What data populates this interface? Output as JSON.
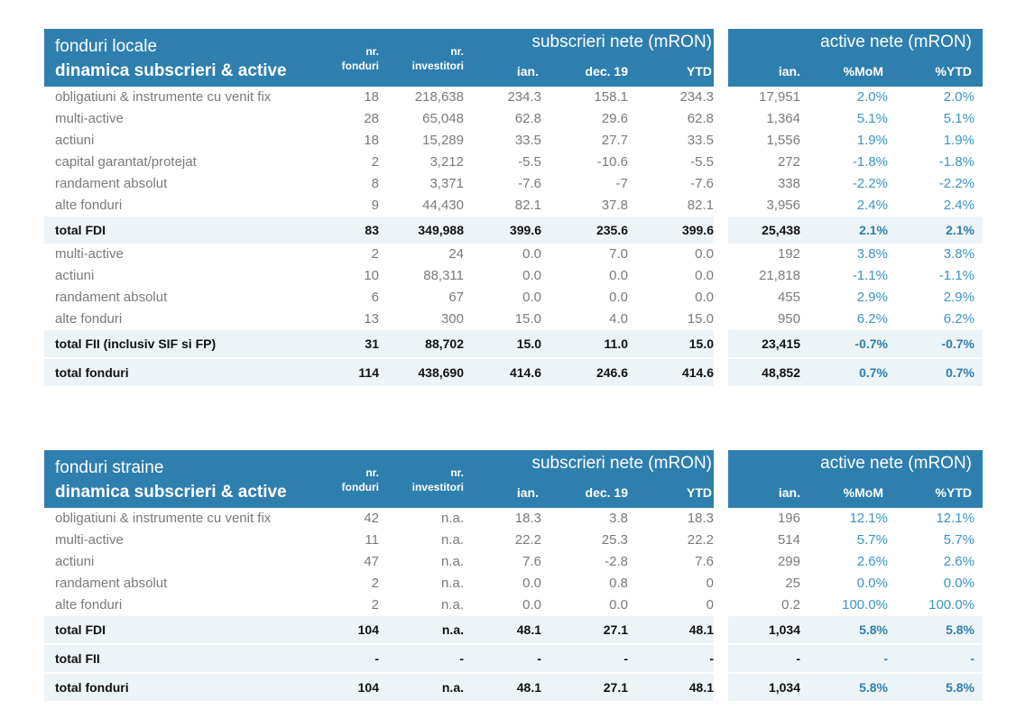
{
  "local": {
    "title": "fonduri locale",
    "subtitle": "dinamica subscrieri & active",
    "hdr_nr_fonduri": [
      "nr.",
      "fonduri"
    ],
    "hdr_nr_investitori": [
      "nr.",
      "investitori"
    ],
    "group_subscrieri": "subscrieri nete (mRON)",
    "group_active": "active nete (mRON)",
    "cols": [
      "ian.",
      "dec. 19",
      "YTD",
      "ian.",
      "%MoM",
      "%YTD"
    ],
    "rows": [
      {
        "label": "obligatiuni & instrumente cu venit fix",
        "nf": "18",
        "ni": "218,638",
        "s1": "234.3",
        "s2": "158.1",
        "s3": "234.3",
        "a1": "17,951",
        "a2": "2.0%",
        "a3": "2.0%",
        "total": false
      },
      {
        "label": "multi-active",
        "nf": "28",
        "ni": "65,048",
        "s1": "62.8",
        "s2": "29.6",
        "s3": "62.8",
        "a1": "1,364",
        "a2": "5.1%",
        "a3": "5.1%",
        "total": false
      },
      {
        "label": "actiuni",
        "nf": "18",
        "ni": "15,289",
        "s1": "33.5",
        "s2": "27.7",
        "s3": "33.5",
        "a1": "1,556",
        "a2": "1.9%",
        "a3": "1.9%",
        "total": false
      },
      {
        "label": "capital garantat/protejat",
        "nf": "2",
        "ni": "3,212",
        "s1": "-5.5",
        "s2": "-10.6",
        "s3": "-5.5",
        "a1": "272",
        "a2": "-1.8%",
        "a3": "-1.8%",
        "total": false
      },
      {
        "label": "randament absolut",
        "nf": "8",
        "ni": "3,371",
        "s1": "-7.6",
        "s2": "-7",
        "s3": "-7.6",
        "a1": "338",
        "a2": "-2.2%",
        "a3": "-2.2%",
        "total": false
      },
      {
        "label": "alte fonduri",
        "nf": "9",
        "ni": "44,430",
        "s1": "82.1",
        "s2": "37.8",
        "s3": "82.1",
        "a1": "3,956",
        "a2": "2.4%",
        "a3": "2.4%",
        "total": false
      },
      {
        "label": "total FDI",
        "nf": "83",
        "ni": "349,988",
        "s1": "399.6",
        "s2": "235.6",
        "s3": "399.6",
        "a1": "25,438",
        "a2": "2.1%",
        "a3": "2.1%",
        "total": true
      },
      {
        "label": "multi-active",
        "nf": "2",
        "ni": "24",
        "s1": "0.0",
        "s2": "7.0",
        "s3": "0.0",
        "a1": "192",
        "a2": "3.8%",
        "a3": "3.8%",
        "total": false
      },
      {
        "label": "actiuni",
        "nf": "10",
        "ni": "88,311",
        "s1": "0.0",
        "s2": "0.0",
        "s3": "0.0",
        "a1": "21,818",
        "a2": "-1.1%",
        "a3": "-1.1%",
        "total": false
      },
      {
        "label": "randament absolut",
        "nf": "6",
        "ni": "67",
        "s1": "0.0",
        "s2": "0.0",
        "s3": "0.0",
        "a1": "455",
        "a2": "2.9%",
        "a3": "2.9%",
        "total": false
      },
      {
        "label": "alte fonduri",
        "nf": "13",
        "ni": "300",
        "s1": "15.0",
        "s2": "4.0",
        "s3": "15.0",
        "a1": "950",
        "a2": "6.2%",
        "a3": "6.2%",
        "total": false
      },
      {
        "label": "total FII (inclusiv SIF si FP)",
        "nf": "31",
        "ni": "88,702",
        "s1": "15.0",
        "s2": "11.0",
        "s3": "15.0",
        "a1": "23,415",
        "a2": "-0.7%",
        "a3": "-0.7%",
        "total": true
      },
      {
        "label": "total fonduri",
        "nf": "114",
        "ni": "438,690",
        "s1": "414.6",
        "s2": "246.6",
        "s3": "414.6",
        "a1": "48,852",
        "a2": "0.7%",
        "a3": "0.7%",
        "total": true
      }
    ]
  },
  "foreign": {
    "title": "fonduri straine",
    "subtitle": "dinamica subscrieri & active",
    "hdr_nr_fonduri": [
      "nr.",
      "fonduri"
    ],
    "hdr_nr_investitori": [
      "nr.",
      "investitori"
    ],
    "group_subscrieri": "subscrieri nete (mRON)",
    "group_active": "active nete (mRON)",
    "cols": [
      "ian.",
      "dec. 19",
      "YTD",
      "ian.",
      "%MoM",
      "%YTD"
    ],
    "rows": [
      {
        "label": "obligatiuni & instrumente cu venit fix",
        "nf": "42",
        "ni": "n.a.",
        "s1": "18.3",
        "s2": "3.8",
        "s3": "18.3",
        "a1": "196",
        "a2": "12.1%",
        "a3": "12.1%",
        "total": false
      },
      {
        "label": "multi-active",
        "nf": "11",
        "ni": "n.a.",
        "s1": "22.2",
        "s2": "25.3",
        "s3": "22.2",
        "a1": "514",
        "a2": "5.7%",
        "a3": "5.7%",
        "total": false
      },
      {
        "label": "actiuni",
        "nf": "47",
        "ni": "n.a.",
        "s1": "7.6",
        "s2": "-2.8",
        "s3": "7.6",
        "a1": "299",
        "a2": "2.6%",
        "a3": "2.6%",
        "total": false
      },
      {
        "label": "randament absolut",
        "nf": "2",
        "ni": "n.a.",
        "s1": "0.0",
        "s2": "0.8",
        "s3": "0",
        "a1": "25",
        "a2": "0.0%",
        "a3": "0.0%",
        "total": false
      },
      {
        "label": "alte fonduri",
        "nf": "2",
        "ni": "n.a.",
        "s1": "0.0",
        "s2": "0.0",
        "s3": "0",
        "a1": "0.2",
        "a2": "100.0%",
        "a3": "100.0%",
        "total": false
      },
      {
        "label": "total FDI",
        "nf": "104",
        "ni": "n.a.",
        "s1": "48.1",
        "s2": "27.1",
        "s3": "48.1",
        "a1": "1,034",
        "a2": "5.8%",
        "a3": "5.8%",
        "total": true
      },
      {
        "label": "total FII",
        "nf": "-",
        "ni": "-",
        "s1": "-",
        "s2": "-",
        "s3": "-",
        "a1": "-",
        "a2": "-",
        "a3": "-",
        "total": true
      },
      {
        "label": "total fonduri",
        "nf": "104",
        "ni": "n.a.",
        "s1": "48.1",
        "s2": "27.1",
        "s3": "48.1",
        "a1": "1,034",
        "a2": "5.8%",
        "a3": "5.8%",
        "total": true
      }
    ]
  },
  "colors": {
    "header": "#2e7fae",
    "total_band": "#edf4f8",
    "pct_text": "#3a95c4",
    "row_text": "#7a7a7a"
  }
}
